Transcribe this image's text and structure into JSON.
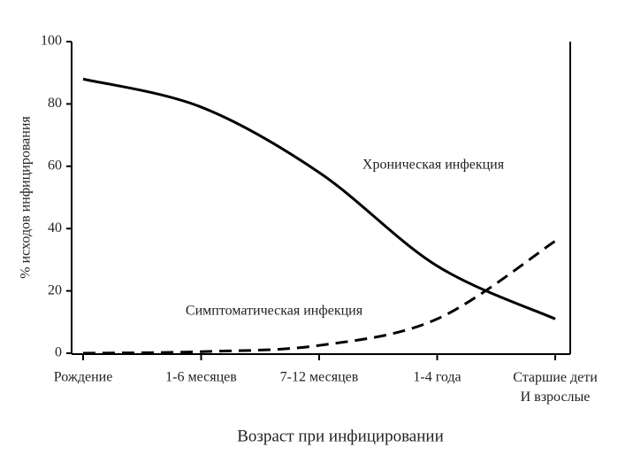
{
  "chart_data": {
    "type": "line",
    "categories": [
      "Рождение",
      "1-6 месяцев",
      "7-12 месяцев",
      "1-4 года",
      "Старшие дети\nИ взрослые"
    ],
    "series": [
      {
        "name": "Хроническая инфекция",
        "color": "#000000",
        "dashed": false,
        "values": [
          88,
          79,
          58,
          28,
          11
        ]
      },
      {
        "name": "Симптоматическая инфекция",
        "color": "#000000",
        "dashed": true,
        "values": [
          0,
          0.5,
          2.5,
          11,
          36
        ]
      }
    ],
    "ylabel": "% исходов инфицирования",
    "xlabel": "Возраст при инфицировании",
    "ylim": [
      0,
      100
    ],
    "yticks": [
      0,
      20,
      40,
      60,
      80,
      100
    ],
    "grid": false
  }
}
